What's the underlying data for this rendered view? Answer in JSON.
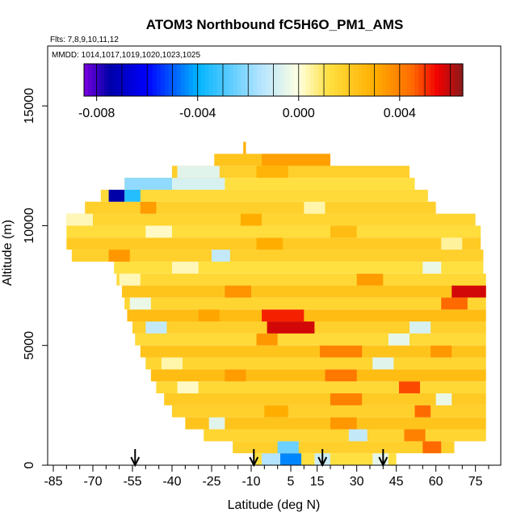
{
  "chart_data": {
    "type": "heatmap",
    "title": "ATOM3 Northbound fC5H6O_PM1_AMS",
    "flights_note": "Flts: 7,8,9,10,11,12",
    "dates_note": "MMDD: 1014,1017,1019,1020,1023,1025",
    "xlabel": "Latitude (deg N)",
    "ylabel": "Altitude (m)",
    "xlim": [
      -85,
      80
    ],
    "ylim": [
      0,
      17500
    ],
    "x_ticks": [
      -85,
      -70,
      -55,
      -40,
      -25,
      -10,
      5,
      15,
      30,
      45,
      60,
      75
    ],
    "x_ticks_minor": [
      -80,
      -75,
      -65,
      -60,
      -50,
      -45,
      -35,
      -30,
      -20,
      -15,
      -5,
      0,
      10,
      20,
      25,
      35,
      40,
      50,
      55,
      65,
      70,
      80
    ],
    "x_tick_labels": [
      "-85",
      "-70",
      "-55",
      "-40",
      "-25",
      "-10",
      "5",
      "15",
      "30",
      "45",
      "60",
      "75"
    ],
    "y_ticks": [
      0,
      5000,
      10000,
      15000
    ],
    "y_tick_labels": [
      "0",
      "5000",
      "10000",
      "15000"
    ],
    "colorbar": {
      "range": [
        -0.0085,
        0.0065
      ],
      "ticks": [
        -0.008,
        -0.004,
        0.0,
        0.004
      ],
      "tick_labels": [
        "-0.008",
        "-0.004",
        "0.000",
        "0.004"
      ],
      "stops": [
        {
          "v": -0.0085,
          "c": "#7a00e0"
        },
        {
          "v": -0.0075,
          "c": "#0000a8"
        },
        {
          "v": -0.006,
          "c": "#0000ff"
        },
        {
          "v": -0.004,
          "c": "#00b4ff"
        },
        {
          "v": -0.0015,
          "c": "#b4e4ff"
        },
        {
          "v": 0.0,
          "c": "#ffffe0"
        },
        {
          "v": 0.0012,
          "c": "#ffe040"
        },
        {
          "v": 0.003,
          "c": "#ffae00"
        },
        {
          "v": 0.0045,
          "c": "#ff6a00"
        },
        {
          "v": 0.0055,
          "c": "#f00000"
        },
        {
          "v": 0.0065,
          "c": "#8b1a1a"
        }
      ]
    },
    "profile_arrows_lat": [
      -54,
      -9,
      17,
      40
    ],
    "bands": [
      {
        "alt": [
          0,
          500
        ],
        "lat": [
          -9,
          45
        ],
        "value": 0.0012,
        "patches": [
          {
            "lat": [
              1,
              9
            ],
            "value": -0.0045
          },
          {
            "lat": [
              -6,
              1
            ],
            "value": -0.0015
          },
          {
            "lat": [
              14,
              20
            ],
            "value": -0.001
          },
          {
            "lat": [
              36,
              42
            ],
            "value": -0.0005
          }
        ]
      },
      {
        "alt": [
          500,
          1000
        ],
        "lat": [
          -17,
          67
        ],
        "value": 0.0018,
        "patches": [
          {
            "lat": [
              0,
              8
            ],
            "value": -0.0025
          },
          {
            "lat": [
              55,
              62
            ],
            "value": 0.0045
          }
        ]
      },
      {
        "alt": [
          1000,
          1500
        ],
        "lat": [
          -28,
          79
        ],
        "value": 0.0016,
        "patches": [
          {
            "lat": [
              27,
              34
            ],
            "value": -0.0012
          },
          {
            "lat": [
              48,
              56
            ],
            "value": 0.004
          }
        ]
      },
      {
        "alt": [
          1500,
          2000
        ],
        "lat": [
          -35,
          79
        ],
        "value": 0.0022,
        "patches": [
          {
            "lat": [
              -26,
              -20
            ],
            "value": -0.0006
          },
          {
            "lat": [
              20,
              30
            ],
            "value": 0.0035
          }
        ]
      },
      {
        "alt": [
          2000,
          2500
        ],
        "lat": [
          -40,
          79
        ],
        "value": 0.0018,
        "patches": [
          {
            "lat": [
              -5,
              4
            ],
            "value": 0.003
          },
          {
            "lat": [
              52,
              58
            ],
            "value": 0.0045
          }
        ]
      },
      {
        "alt": [
          2500,
          3000
        ],
        "lat": [
          -43,
          79
        ],
        "value": 0.002,
        "patches": [
          {
            "lat": [
              20,
              32
            ],
            "value": 0.004
          },
          {
            "lat": [
              60,
              66
            ],
            "value": -0.0004
          }
        ]
      },
      {
        "alt": [
          3000,
          3500
        ],
        "lat": [
          -46,
          79
        ],
        "value": 0.0015,
        "patches": [
          {
            "lat": [
              -38,
              -30
            ],
            "value": 0.0002
          },
          {
            "lat": [
              46,
              54
            ],
            "value": 0.0048
          }
        ]
      },
      {
        "alt": [
          3500,
          4000
        ],
        "lat": [
          -48,
          79
        ],
        "value": 0.0025,
        "patches": [
          {
            "lat": [
              18,
              30
            ],
            "value": 0.0042
          },
          {
            "lat": [
              -20,
              -12
            ],
            "value": 0.0034
          }
        ]
      },
      {
        "alt": [
          4000,
          4500
        ],
        "lat": [
          -50,
          79
        ],
        "value": 0.0016,
        "patches": [
          {
            "lat": [
              -44,
              -36
            ],
            "value": 0.0004
          },
          {
            "lat": [
              36,
              44
            ],
            "value": -0.0006
          }
        ]
      },
      {
        "alt": [
          4500,
          5000
        ],
        "lat": [
          -52,
          79
        ],
        "value": 0.0022,
        "patches": [
          {
            "lat": [
              16,
              32
            ],
            "value": 0.004
          },
          {
            "lat": [
              58,
              66
            ],
            "value": 0.0035
          }
        ]
      },
      {
        "alt": [
          5000,
          5500
        ],
        "lat": [
          -54,
          79
        ],
        "value": 0.0014,
        "patches": [
          {
            "lat": [
              -8,
              0
            ],
            "value": 0.0035
          },
          {
            "lat": [
              42,
              50
            ],
            "value": -0.0005
          }
        ]
      },
      {
        "alt": [
          5500,
          6000
        ],
        "lat": [
          -55,
          79
        ],
        "value": 0.0018,
        "patches": [
          {
            "lat": [
              -4,
              14
            ],
            "value": 0.0058
          },
          {
            "lat": [
              -50,
              -42
            ],
            "value": -0.0012
          },
          {
            "lat": [
              50,
              58
            ],
            "value": -0.0008
          }
        ]
      },
      {
        "alt": [
          6000,
          6500
        ],
        "lat": [
          -57,
          79
        ],
        "value": 0.0025,
        "patches": [
          {
            "lat": [
              -6,
              10
            ],
            "value": 0.0052
          },
          {
            "lat": [
              -30,
              -22
            ],
            "value": 0.0032
          }
        ]
      },
      {
        "alt": [
          6500,
          7000
        ],
        "lat": [
          -58,
          79
        ],
        "value": 0.0016,
        "patches": [
          {
            "lat": [
              -56,
              -48
            ],
            "value": -0.0004
          },
          {
            "lat": [
              62,
              72
            ],
            "value": 0.0045
          }
        ]
      },
      {
        "alt": [
          7000,
          7500
        ],
        "lat": [
          -59,
          79
        ],
        "value": 0.0022,
        "patches": [
          {
            "lat": [
              66,
              79
            ],
            "value": 0.0058
          },
          {
            "lat": [
              -20,
              -10
            ],
            "value": 0.0036
          }
        ]
      },
      {
        "alt": [
          7500,
          8000
        ],
        "lat": [
          -61,
          79
        ],
        "value": 0.0015,
        "patches": [
          {
            "lat": [
              -60,
              -52
            ],
            "value": 0.0003
          },
          {
            "lat": [
              30,
              40
            ],
            "value": 0.0034
          }
        ]
      },
      {
        "alt": [
          8000,
          8500
        ],
        "lat": [
          -62,
          78
        ],
        "value": 0.0012,
        "patches": [
          {
            "lat": [
              -40,
              -30
            ],
            "value": 0.0003
          },
          {
            "lat": [
              55,
              62
            ],
            "value": -0.0004
          }
        ]
      },
      {
        "alt": [
          8500,
          9000
        ],
        "lat": [
          -78,
          78
        ],
        "value": 0.0018,
        "patches": [
          {
            "lat": [
              -64,
              -56
            ],
            "value": 0.0035
          },
          {
            "lat": [
              -25,
              -18
            ],
            "value": -0.0012
          }
        ]
      },
      {
        "alt": [
          9000,
          9500
        ],
        "lat": [
          -80,
          77
        ],
        "value": 0.002,
        "patches": [
          {
            "lat": [
              -8,
              2
            ],
            "value": 0.003
          },
          {
            "lat": [
              62,
              70
            ],
            "value": 0.0005
          }
        ]
      },
      {
        "alt": [
          9500,
          10000
        ],
        "lat": [
          -80,
          77
        ],
        "value": 0.0013,
        "patches": [
          {
            "lat": [
              -50,
              -40
            ],
            "value": 0.0002
          },
          {
            "lat": [
              20,
              30
            ],
            "value": 0.0025
          }
        ]
      },
      {
        "alt": [
          10000,
          10500
        ],
        "lat": [
          -80,
          75
        ],
        "value": 0.0016,
        "patches": [
          {
            "lat": [
              -80,
              -70
            ],
            "value": 0.0003
          },
          {
            "lat": [
              -14,
              -6
            ],
            "value": 0.003
          }
        ]
      },
      {
        "alt": [
          10500,
          11000
        ],
        "lat": [
          -73,
          60
        ],
        "value": 0.0018,
        "patches": [
          {
            "lat": [
              -52,
              -46
            ],
            "value": 0.0034
          },
          {
            "lat": [
              10,
              18
            ],
            "value": 0.0004
          }
        ]
      },
      {
        "alt": [
          11000,
          11500
        ],
        "lat": [
          -67,
          57
        ],
        "value": 0.0014,
        "patches": [
          {
            "lat": [
              -64,
              -58
            ],
            "value": -0.0075
          },
          {
            "lat": [
              -58,
              -52
            ],
            "value": -0.0035
          }
        ]
      },
      {
        "alt": [
          11500,
          12000
        ],
        "lat": [
          -58,
          52
        ],
        "value": 0.0012,
        "patches": [
          {
            "lat": [
              -58,
              -40
            ],
            "value": -0.002
          },
          {
            "lat": [
              -40,
              -20
            ],
            "value": -0.0008
          }
        ]
      },
      {
        "alt": [
          12000,
          12500
        ],
        "lat": [
          -40,
          50
        ],
        "value": 0.0018,
        "patches": [
          {
            "lat": [
              -38,
              -22
            ],
            "value": -0.0006
          },
          {
            "lat": [
              -8,
              4
            ],
            "value": 0.0028
          }
        ]
      },
      {
        "alt": [
          12500,
          13000
        ],
        "lat": [
          -24,
          20
        ],
        "value": 0.0022,
        "patches": [
          {
            "lat": [
              -6,
              20
            ],
            "value": 0.0033
          }
        ]
      },
      {
        "alt": [
          13000,
          13500
        ],
        "lat": [
          -13,
          -12
        ],
        "value": 0.003,
        "patches": []
      }
    ]
  }
}
